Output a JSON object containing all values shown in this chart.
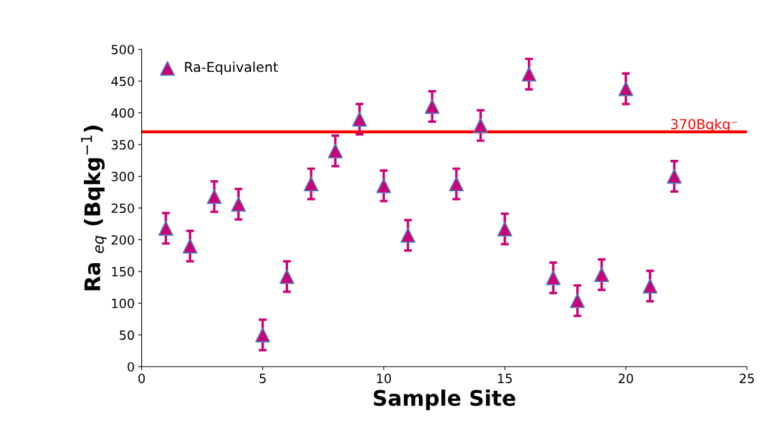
{
  "chart_data": {
    "type": "scatter",
    "xlabel": "Sample Site",
    "ylabel": "Ra $_{eq}$ (Bqkg$^{−1}$)",
    "x": [
      1,
      2,
      3,
      4,
      5,
      6,
      7,
      8,
      9,
      10,
      11,
      12,
      13,
      14,
      15,
      16,
      17,
      18,
      19,
      20,
      21,
      22
    ],
    "series": [
      {
        "name": "Ra-Equivalent",
        "color": "#cc0077",
        "values": [
          218,
          190,
          268,
          256,
          50,
          142,
          288,
          340,
          390,
          285,
          207,
          410,
          288,
          380,
          217,
          461,
          140,
          104,
          145,
          438,
          127,
          300
        ],
        "errors": [
          24,
          24,
          24,
          24,
          24,
          24,
          24,
          24,
          24,
          24,
          24,
          24,
          24,
          24,
          24,
          24,
          24,
          24,
          24,
          24,
          24,
          24
        ]
      }
    ],
    "xlim": [
      0,
      25
    ],
    "xticks": [
      0,
      5,
      10,
      15,
      20,
      25
    ],
    "ylim": [
      0,
      500
    ],
    "yticks": [
      0,
      50,
      100,
      150,
      200,
      250,
      300,
      350,
      400,
      450,
      500
    ],
    "ref_lines": [
      {
        "axis": "y",
        "value": 370,
        "label": "370Bqkg⁻",
        "color": "#ff0000"
      }
    ],
    "legend": "top left",
    "grid": false,
    "marker": "triangle"
  }
}
